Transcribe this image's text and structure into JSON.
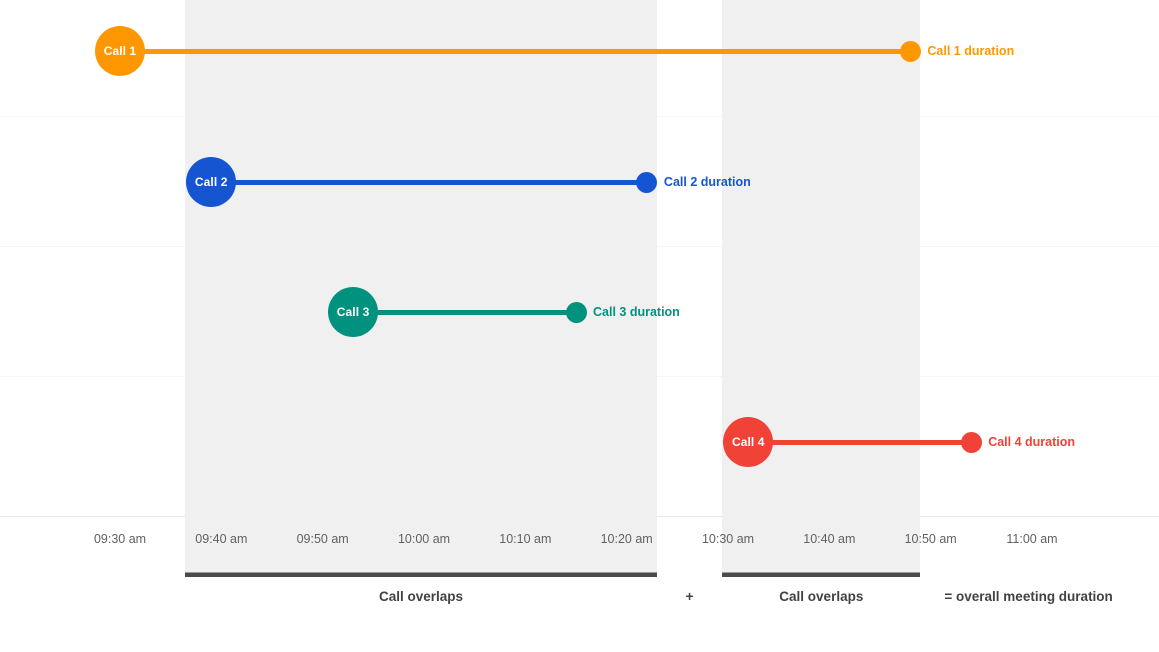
{
  "chart_data": {
    "type": "timeline",
    "title": "",
    "x_axis": {
      "tick_labels": [
        "09:30 am",
        "09:40 am",
        "09:50 am",
        "10:00 am",
        "10:10 am",
        "10:20 am",
        "10:30 am",
        "10:40 am",
        "10:50 am",
        "11:00 am"
      ],
      "tick_minutes": [
        570,
        580,
        590,
        600,
        610,
        620,
        630,
        640,
        650,
        660
      ],
      "range_start": "09:30 am",
      "range_end": "11:00 am",
      "grid": "horizontal-row-separators"
    },
    "calls": [
      {
        "name": "Call 1",
        "duration_label": "Call 1 duration",
        "start": "09:30 am",
        "end": "10:48 am",
        "start_min": 570,
        "end_min": 648,
        "color": "#ff9800"
      },
      {
        "name": "Call 2",
        "duration_label": "Call 2 duration",
        "start": "09:39 am",
        "end": "10:22 am",
        "start_min": 579,
        "end_min": 622,
        "color": "#1655d2"
      },
      {
        "name": "Call 3",
        "duration_label": "Call 3 duration",
        "start": "09:53 am",
        "end": "10:15 am",
        "start_min": 593,
        "end_min": 615,
        "color": "#00927f"
      },
      {
        "name": "Call 4",
        "duration_label": "Call 4 duration",
        "start": "10:32 am",
        "end": "10:54 am",
        "start_min": 632,
        "end_min": 654,
        "color": "#f04237"
      }
    ],
    "overlaps": [
      {
        "label": "Call overlaps",
        "start": "09:39 am",
        "end": "10:22 am",
        "start_min": 579,
        "end_min": 622
      },
      {
        "label": "Call overlaps",
        "start": "10:32 am",
        "end": "10:48 am",
        "start_min": 632,
        "end_min": 648
      }
    ],
    "annotations": {
      "plus": "+",
      "equals": "= overall meeting duration"
    },
    "colors": {
      "overlap_band": "#f0f0f0",
      "overlap_bar": "#4a4a4a",
      "gridline": "#f5f5f5",
      "axis_line": "#e9e9e9",
      "annotation_text": "#424242",
      "tick_text": "#616161"
    }
  }
}
